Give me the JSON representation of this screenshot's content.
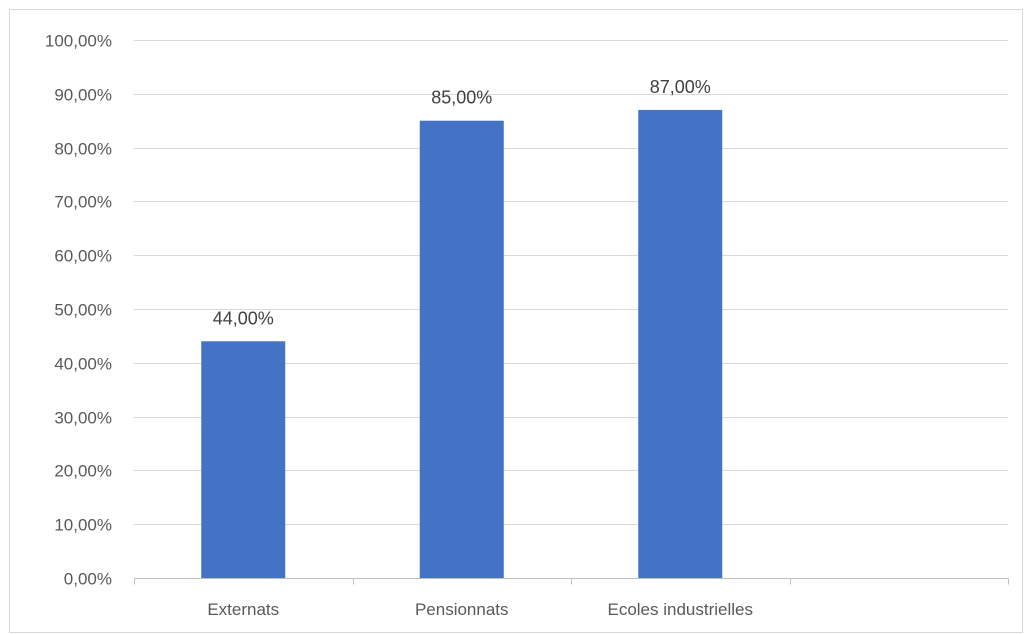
{
  "chart_data": {
    "type": "bar",
    "categories": [
      "Externats",
      "Pensionnats",
      "Ecoles industrielles",
      ""
    ],
    "values": [
      0.44,
      0.85,
      0.87,
      null
    ],
    "data_labels": [
      "44,00%",
      "85,00%",
      "87,00%",
      ""
    ],
    "title": "",
    "xlabel": "",
    "ylabel": "",
    "ylim": [
      0,
      1.0
    ],
    "yticks": [
      0,
      0.1,
      0.2,
      0.3,
      0.4,
      0.5,
      0.6,
      0.7,
      0.8,
      0.9,
      1.0
    ],
    "ytick_labels": [
      "0,00%",
      "10,00%",
      "20,00%",
      "30,00%",
      "40,00%",
      "50,00%",
      "60,00%",
      "70,00%",
      "80,00%",
      "90,00%",
      "100,00%"
    ],
    "grid": true,
    "legend": "none",
    "colors": {
      "bar": "#4472c4",
      "grid": "#d9d9d9",
      "text": "#595959"
    }
  }
}
